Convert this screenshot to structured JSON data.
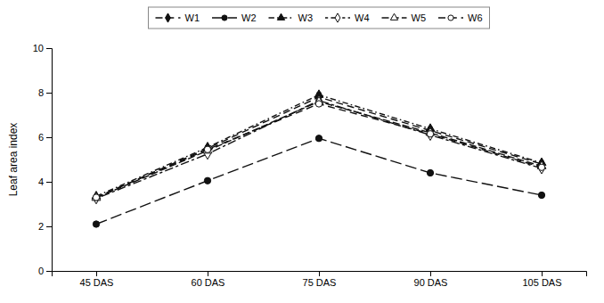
{
  "chart_data": {
    "type": "line",
    "y_label": "Leaf area index",
    "categories": [
      "45 DAS",
      "60 DAS",
      "75 DAS",
      "90 DAS",
      "105 DAS"
    ],
    "series": [
      {
        "name": "W1",
        "color": "#111111",
        "marker": "diamond",
        "line_style": "dashed",
        "values": [
          3.3,
          5.5,
          7.8,
          6.3,
          4.8
        ],
        "errors": [
          0.06,
          0.07,
          0.1,
          0.07,
          0.07
        ]
      },
      {
        "name": "W2",
        "color": "#111111",
        "marker": "circle",
        "line_style": "long-dashed",
        "values": [
          2.1,
          4.05,
          5.95,
          4.4,
          3.4
        ],
        "errors": [
          0.06,
          0.07,
          0.09,
          0.08,
          0.1
        ]
      },
      {
        "name": "W3",
        "color": "#111111",
        "marker": "triangle",
        "line_style": "dash-dot",
        "values": [
          3.35,
          5.55,
          7.9,
          6.38,
          4.85
        ],
        "errors": [
          0.06,
          0.07,
          0.09,
          0.07,
          0.07
        ]
      },
      {
        "name": "W4",
        "color": "#111111",
        "marker": "diamond-open",
        "line_style": "dot-dash",
        "values": [
          3.25,
          5.25,
          7.65,
          6.1,
          4.6
        ],
        "errors": [
          0.06,
          0.07,
          0.09,
          0.07,
          0.07
        ]
      },
      {
        "name": "W5",
        "color": "#111111",
        "marker": "triangle-open",
        "line_style": "dense-dashed",
        "values": [
          3.28,
          5.4,
          7.6,
          6.2,
          4.7
        ],
        "errors": [
          0.06,
          0.07,
          0.09,
          0.07,
          0.07
        ]
      },
      {
        "name": "W6",
        "color": "#111111",
        "marker": "circle-open",
        "line_style": "dashed",
        "values": [
          3.3,
          5.45,
          7.5,
          6.15,
          4.65
        ],
        "errors": [
          0.06,
          0.07,
          0.09,
          0.07,
          0.07
        ]
      }
    ],
    "ylim": [
      0,
      10
    ],
    "yticks": [
      0,
      2,
      4,
      6,
      8,
      10
    ],
    "grid": false,
    "legend": "top"
  }
}
